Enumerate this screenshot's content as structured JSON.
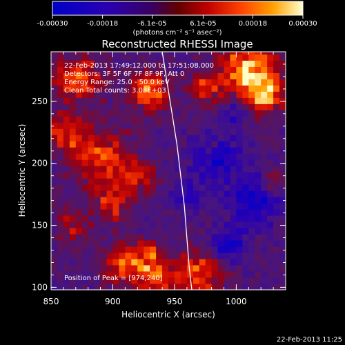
{
  "colorbar": {
    "tick_labels": [
      "-0.00030",
      "-0.00018",
      "-6.1e-05",
      "6.1e-05",
      "0.00018",
      "0.00030"
    ],
    "tick_values": [
      -0.0003,
      -0.00018,
      -6.1e-05,
      6.1e-05,
      0.00018,
      0.0003
    ],
    "range": [
      -0.0003,
      0.0003
    ],
    "unit_label": "(photons cm⁻² s⁻¹ asec⁻²)",
    "colors": [
      "#0000c8",
      "#3a0070",
      "#b00000",
      "#ff3000",
      "#ff9000",
      "#ffffc0"
    ]
  },
  "chart_data": {
    "type": "heatmap",
    "title": "Reconstructed RHESSI Image",
    "xlabel": "Heliocentric X (arcsec)",
    "ylabel": "Heliocentric Y (arcsec)",
    "xlim": [
      850,
      1040
    ],
    "ylim": [
      98,
      290
    ],
    "x_ticks": [
      850,
      900,
      950,
      1000
    ],
    "y_ticks": [
      100,
      150,
      200,
      250
    ],
    "annotations": [
      "22-Feb-2013 17:49:12.000 to 17:51:08.000",
      "Detectors: 3F 5F 6F 7F 8F 9F, Att 0",
      "Energy Range: 25.0 - 50.0 keV",
      "Clean    Total counts: 3.08E+03"
    ],
    "peak_label": "Position of Peak = [974,240]",
    "peak": [
      974,
      240
    ],
    "limb_curve": {
      "x": [
        940,
        944,
        948,
        952,
        955,
        958,
        960,
        962,
        964
      ],
      "y": [
        290,
        265,
        240,
        215,
        190,
        165,
        140,
        115,
        98
      ]
    },
    "hot_regions": [
      {
        "x": 1010,
        "y": 275,
        "r": 22,
        "v": 1.0
      },
      {
        "x": 1025,
        "y": 255,
        "r": 14,
        "v": 0.8
      },
      {
        "x": 930,
        "y": 258,
        "r": 14,
        "v": 0.9
      },
      {
        "x": 975,
        "y": 262,
        "r": 12,
        "v": 0.6
      },
      {
        "x": 872,
        "y": 268,
        "r": 18,
        "v": 0.8
      },
      {
        "x": 862,
        "y": 225,
        "r": 14,
        "v": 0.7
      },
      {
        "x": 890,
        "y": 205,
        "r": 22,
        "v": 0.7
      },
      {
        "x": 920,
        "y": 190,
        "r": 14,
        "v": 0.55
      },
      {
        "x": 900,
        "y": 168,
        "r": 14,
        "v": 0.6
      },
      {
        "x": 868,
        "y": 150,
        "r": 12,
        "v": 0.45
      },
      {
        "x": 930,
        "y": 128,
        "r": 10,
        "v": 0.5
      },
      {
        "x": 912,
        "y": 120,
        "r": 16,
        "v": 0.8
      },
      {
        "x": 935,
        "y": 108,
        "r": 14,
        "v": 0.7
      },
      {
        "x": 968,
        "y": 110,
        "r": 18,
        "v": 0.75
      },
      {
        "x": 1030,
        "y": 185,
        "r": 10,
        "v": 0.4
      },
      {
        "x": 980,
        "y": 215,
        "r": 8,
        "v": 0.3
      }
    ],
    "cold_regions": [
      {
        "x": 985,
        "y": 205,
        "r": 20,
        "v": -0.6
      },
      {
        "x": 1015,
        "y": 170,
        "r": 20,
        "v": -0.7
      },
      {
        "x": 995,
        "y": 135,
        "r": 12,
        "v": -0.75
      },
      {
        "x": 960,
        "y": 175,
        "r": 14,
        "v": -0.4
      },
      {
        "x": 1000,
        "y": 240,
        "r": 10,
        "v": -0.4
      }
    ]
  },
  "footer": {
    "timestamp": "22-Feb-2013 11:25"
  }
}
